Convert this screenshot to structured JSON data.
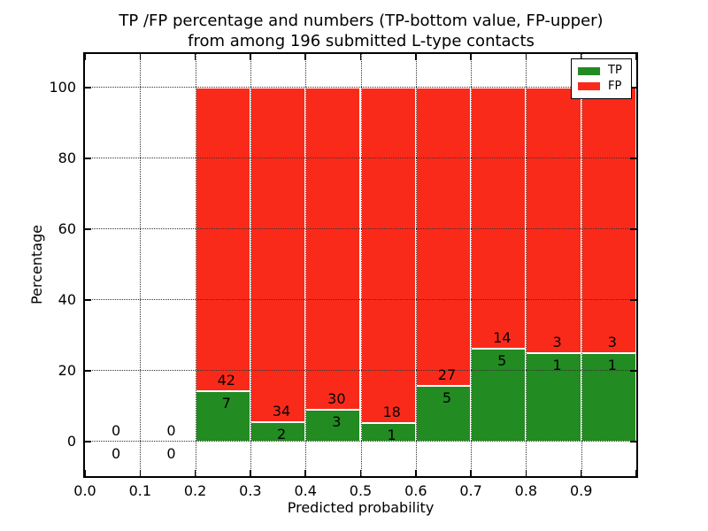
{
  "figure": {
    "title_line1": "TP /FP percentage and numbers (TP-bottom value, FP-upper)",
    "title_line2": "from among 196 submitted L-type contacts"
  },
  "chart_data": {
    "type": "bar",
    "stacked": true,
    "title": "TP /FP percentage and numbers (TP-bottom value, FP-upper)\nfrom among 196 submitted L-type contacts",
    "xlabel": "Predicted probability",
    "ylabel": "Percentage",
    "xlim": [
      0.0,
      1.0
    ],
    "ylim": [
      -10,
      110
    ],
    "xticks": [
      "0.0",
      "0.1",
      "0.2",
      "0.3",
      "0.4",
      "0.5",
      "0.6",
      "0.7",
      "0.8",
      "0.9"
    ],
    "yticks": [
      "0",
      "20",
      "40",
      "60",
      "80",
      "100"
    ],
    "grid": true,
    "grid_style": "dotted",
    "total_contacts": 196,
    "colors": {
      "tp": "#228b22",
      "fp": "#fa2a1a"
    },
    "legend": {
      "position": "upper right",
      "entries": [
        {
          "label": "TP",
          "color": "#228b22"
        },
        {
          "label": "FP",
          "color": "#fa2a1a"
        }
      ]
    },
    "bins": [
      {
        "range": [
          0.0,
          0.1
        ],
        "tp": 0,
        "fp": 0,
        "tp_pct": 0,
        "fp_pct": 0
      },
      {
        "range": [
          0.1,
          0.2
        ],
        "tp": 0,
        "fp": 0,
        "tp_pct": 0,
        "fp_pct": 0
      },
      {
        "range": [
          0.2,
          0.3
        ],
        "tp": 7,
        "fp": 42,
        "tp_pct": 14.29,
        "fp_pct": 85.71
      },
      {
        "range": [
          0.3,
          0.4
        ],
        "tp": 2,
        "fp": 34,
        "tp_pct": 5.56,
        "fp_pct": 94.44
      },
      {
        "range": [
          0.4,
          0.5
        ],
        "tp": 3,
        "fp": 30,
        "tp_pct": 9.09,
        "fp_pct": 90.91
      },
      {
        "range": [
          0.5,
          0.6
        ],
        "tp": 1,
        "fp": 18,
        "tp_pct": 5.26,
        "fp_pct": 94.74
      },
      {
        "range": [
          0.6,
          0.7
        ],
        "tp": 5,
        "fp": 27,
        "tp_pct": 15.63,
        "fp_pct": 84.38
      },
      {
        "range": [
          0.7,
          0.8
        ],
        "tp": 5,
        "fp": 14,
        "tp_pct": 26.32,
        "fp_pct": 73.68
      },
      {
        "range": [
          0.8,
          0.9
        ],
        "tp": 1,
        "fp": 3,
        "tp_pct": 25.0,
        "fp_pct": 75.0
      },
      {
        "range": [
          0.9,
          1.0
        ],
        "tp": 1,
        "fp": 3,
        "tp_pct": 25.0,
        "fp_pct": 75.0
      }
    ]
  }
}
